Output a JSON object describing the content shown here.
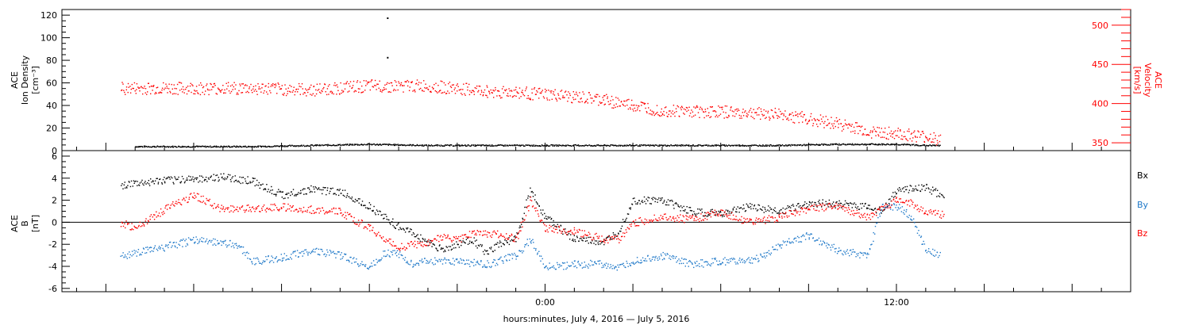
{
  "chart_data": [
    {
      "type": "scatter",
      "panel": "top",
      "ylabel_left": [
        "ACE",
        "Ion Density",
        "[cm⁻³]"
      ],
      "ylabel_right": [
        "ACE",
        "Velocity",
        "[km/s]"
      ],
      "ylim_left": [
        0,
        125
      ],
      "left_ticks": [
        "0",
        "20",
        "40",
        "60",
        "80",
        "100",
        "120"
      ],
      "ylim_right": [
        340,
        520
      ],
      "right_ticks": [
        "350",
        "400",
        "450",
        "500"
      ],
      "series": [
        {
          "name": "Ion Density",
          "axis": "left",
          "color": "#000000",
          "x": [
            -14,
            -12,
            -10,
            -8,
            -6,
            -4,
            -2,
            0,
            2,
            4,
            6,
            8,
            10,
            11,
            12,
            13,
            13.5
          ],
          "y": [
            4,
            4,
            4,
            5,
            6,
            5,
            5,
            5,
            5,
            5,
            5,
            5,
            6,
            6,
            6,
            5,
            5
          ]
        },
        {
          "name": "Velocity",
          "axis": "right",
          "color": "#ff0000",
          "x": [
            -14.5,
            -12,
            -10,
            -8,
            -6,
            -4,
            -2,
            -1,
            0,
            2,
            3,
            4,
            6,
            8,
            10,
            11,
            12,
            13.5
          ],
          "y": [
            420,
            420,
            420,
            418,
            423,
            423,
            416,
            415,
            412,
            405,
            398,
            392,
            390,
            387,
            375,
            365,
            362,
            355
          ]
        }
      ],
      "outliers_density": [
        {
          "x": -5.4,
          "y": 118
        },
        {
          "x": -5.4,
          "y": 83
        }
      ]
    },
    {
      "type": "scatter",
      "panel": "bottom",
      "ylabel_left": [
        "ACE",
        "B",
        "[nT]"
      ],
      "ylim": [
        -6.3,
        6.5
      ],
      "ticks": [
        "-6",
        "-4",
        "-2",
        "0",
        "2",
        "4",
        "6"
      ],
      "legend": [
        "Bx",
        "By",
        "Bz"
      ],
      "series": [
        {
          "name": "Bx",
          "color": "#000000",
          "x": [
            -14.5,
            -13,
            -12,
            -11,
            -10,
            -9,
            -8,
            -7,
            -6,
            -5.5,
            -5,
            -4.5,
            -4,
            -3.5,
            -3,
            -2.5,
            -2,
            -1.5,
            -1,
            -0.5,
            0,
            1,
            2,
            2.5,
            3,
            4,
            5,
            6,
            7,
            8,
            9,
            10,
            11,
            11.5,
            12,
            13,
            13.6
          ],
          "y": [
            3.4,
            3.8,
            4.0,
            4.1,
            3.8,
            2.5,
            3.0,
            2.8,
            1.5,
            0.5,
            -0.4,
            -1.0,
            -1.8,
            -2.5,
            -2.0,
            -1.5,
            -2.8,
            -1.8,
            -1.5,
            3.0,
            0.5,
            -1.5,
            -1.8,
            -0.8,
            2.0,
            2.0,
            1.0,
            0.8,
            1.5,
            1.0,
            1.8,
            1.7,
            1.5,
            1.0,
            3.0,
            3.2,
            2.4
          ]
        },
        {
          "name": "By",
          "color": "#1e78c8",
          "x": [
            -14.5,
            -13.5,
            -12,
            -11,
            -10.5,
            -10,
            -9,
            -8,
            -7,
            -6,
            -5.5,
            -5,
            -4.5,
            -4,
            -3,
            -2,
            -1,
            -0.5,
            0,
            1,
            2,
            2.5,
            3,
            4,
            5,
            6,
            7,
            7.5,
            8,
            9,
            10,
            11,
            11.5,
            12,
            12.5,
            13,
            13.5
          ],
          "y": [
            -3.0,
            -2.5,
            -1.6,
            -1.8,
            -2.0,
            -3.5,
            -3.2,
            -2.5,
            -3.0,
            -4.0,
            -2.8,
            -2.8,
            -3.8,
            -3.5,
            -3.5,
            -3.8,
            -3.0,
            -1.5,
            -4.0,
            -3.8,
            -3.7,
            -4.2,
            -3.5,
            -3.0,
            -3.8,
            -3.5,
            -3.5,
            -3.0,
            -2.0,
            -1.2,
            -2.5,
            -3.0,
            1.5,
            1.5,
            0.5,
            -2.5,
            -3.0
          ]
        },
        {
          "name": "Bz",
          "color": "#ff0000",
          "x": [
            -14.5,
            -14,
            -13,
            -12,
            -11,
            -10,
            -9,
            -8,
            -7,
            -6,
            -5.5,
            -5,
            -4.5,
            -4,
            -3.5,
            -3,
            -2.5,
            -2,
            -1.5,
            -1,
            -0.5,
            0,
            1,
            2,
            2.5,
            3,
            4,
            5,
            6,
            7,
            8,
            9,
            10,
            11,
            12,
            12.5,
            13,
            13.6
          ],
          "y": [
            0.0,
            -0.5,
            1.2,
            2.5,
            1.2,
            1.3,
            1.4,
            1.2,
            1.0,
            -0.5,
            -1.5,
            -2.2,
            -2.0,
            -1.8,
            -1.2,
            -1.5,
            -1.0,
            -1.0,
            -1.0,
            -1.5,
            2.0,
            -0.5,
            -0.8,
            -1.5,
            -1.5,
            0.0,
            0.5,
            0.3,
            1.0,
            0.0,
            0.5,
            1.3,
            1.5,
            0.5,
            2.0,
            1.8,
            1.0,
            0.7
          ]
        }
      ]
    }
  ],
  "x_axis": {
    "range_hours": [
      -16.5,
      20.0
    ],
    "tick_labels": [
      {
        "x": 0,
        "label": "0:00"
      },
      {
        "x": 12,
        "label": "12:00"
      }
    ],
    "title": "hours:minutes, July  4, 2016 — July  5, 2016"
  },
  "colors": {
    "black": "#000000",
    "red": "#ff0000",
    "blue": "#1e78c8"
  }
}
